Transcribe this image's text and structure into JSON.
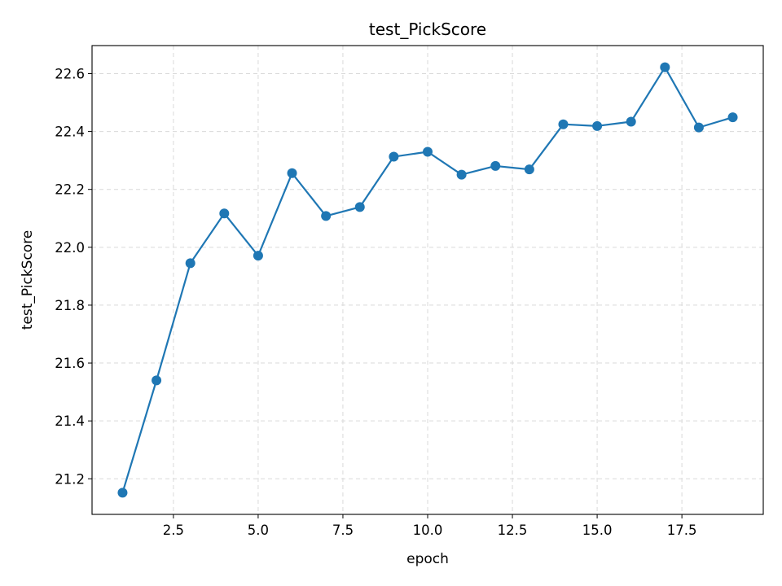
{
  "chart_data": {
    "type": "line",
    "title": "test_PickScore",
    "xlabel": "epoch",
    "ylabel": "test_PickScore",
    "xlim": [
      0.1,
      19.9
    ],
    "ylim": [
      21.077,
      22.697
    ],
    "x_ticks": [
      2.5,
      5.0,
      7.5,
      10.0,
      12.5,
      15.0,
      17.5
    ],
    "x_tick_labels": [
      "2.5",
      "5.0",
      "7.5",
      "10.0",
      "12.5",
      "15.0",
      "17.5"
    ],
    "y_ticks": [
      21.2,
      21.4,
      21.6,
      21.8,
      22.0,
      22.2,
      22.4,
      22.6
    ],
    "y_tick_labels": [
      "21.2",
      "21.4",
      "21.6",
      "21.8",
      "22.0",
      "22.2",
      "22.4",
      "22.6"
    ],
    "grid": true,
    "colors": {
      "line": "#1f77b4",
      "grid": "#d9d9d9",
      "axes": "#000000"
    },
    "series": [
      {
        "x": [
          1,
          2,
          3,
          4,
          5,
          6,
          7,
          8,
          9,
          10,
          11,
          12,
          13,
          14,
          15,
          16,
          17,
          18,
          19
        ],
        "values": [
          21.152,
          21.54,
          21.945,
          22.117,
          21.971,
          22.256,
          22.108,
          22.139,
          22.313,
          22.33,
          22.251,
          22.281,
          22.269,
          22.425,
          22.419,
          22.434,
          22.622,
          22.414,
          22.449
        ]
      }
    ]
  }
}
